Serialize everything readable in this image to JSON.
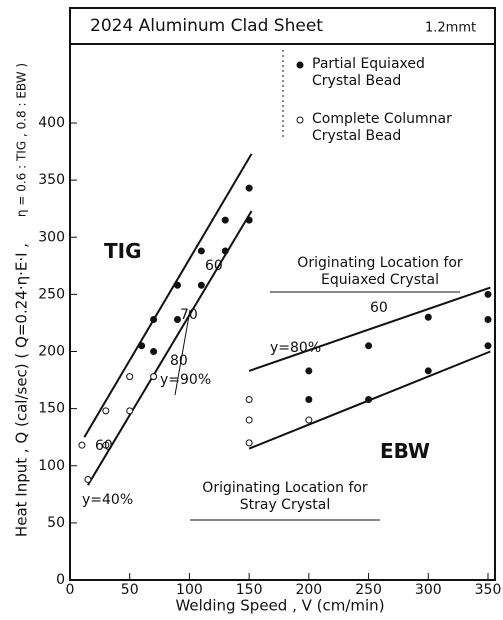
{
  "chart_data": {
    "type": "scatter",
    "title": "2024 Aluminum Clad Sheet",
    "subtitle": "1.2mmt",
    "xlabel": "Welding Speed , V (cm/min)",
    "ylabel": "Heat Input , Q (cal/sec) ( Q=0.24·η·E·I ,",
    "ylabel_note": "η = 0.6 : TIG , 0.8 : EBW )",
    "xlim": [
      0,
      350
    ],
    "ylim": [
      0,
      400
    ],
    "xticks": [
      0,
      50,
      100,
      150,
      200,
      250,
      300,
      350
    ],
    "yticks": [
      0,
      50,
      100,
      150,
      200,
      250,
      300,
      350,
      400
    ],
    "series": [
      {
        "name": "Partial Equiaxed Crystal Bead",
        "marker": "filled",
        "color": "#111111",
        "x": [
          60,
          70,
          70,
          90,
          90,
          110,
          110,
          130,
          130,
          150,
          150,
          200,
          200,
          250,
          250,
          300,
          300,
          350,
          350,
          350
        ],
        "values": [
          205,
          228,
          200,
          258,
          228,
          288,
          258,
          315,
          288,
          343,
          315,
          183,
          158,
          205,
          158,
          230,
          183,
          250,
          228,
          205
        ]
      },
      {
        "name": "Complete Columnar Crystal Bead",
        "marker": "open",
        "color": "#111111",
        "x": [
          10,
          15,
          30,
          30,
          50,
          50,
          70,
          150,
          150,
          150,
          200
        ],
        "values": [
          118,
          88,
          118,
          148,
          148,
          178,
          178,
          158,
          140,
          120,
          140
        ]
      }
    ],
    "lines": [
      {
        "x": [
          12,
          152
        ],
        "values": [
          125,
          373
        ]
      },
      {
        "x": [
          15,
          152
        ],
        "values": [
          83,
          323
        ]
      },
      {
        "x": [
          150,
          352
        ],
        "values": [
          183,
          256
        ]
      },
      {
        "x": [
          150,
          352
        ],
        "values": [
          115,
          200
        ]
      }
    ],
    "annotations": [
      "TIG",
      "EBW",
      "Originating Location for Equiaxed Crystal",
      "Originating Location for Stray Crystal",
      "60",
      "70",
      "80",
      "y=90%",
      "60",
      "y=40%",
      "y=80%",
      "60"
    ]
  }
}
